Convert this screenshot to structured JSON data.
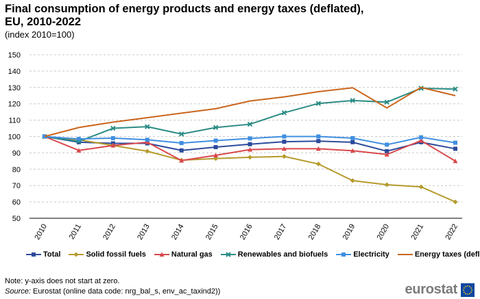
{
  "chart_data": {
    "type": "line",
    "title": "Final consumption of energy products and energy taxes (deflated),",
    "title_line2": "EU, 2010-2022",
    "subtitle": "(index 2010=100)",
    "xlabel": "",
    "ylabel": "",
    "ylim": [
      50,
      150
    ],
    "yticks": [
      "50",
      "60",
      "70",
      "80",
      "90",
      "100",
      "110",
      "120",
      "130",
      "140",
      "150"
    ],
    "grid": "horizontal dashed",
    "legend_position": "bottom",
    "categories": [
      "2010",
      "2011",
      "2012",
      "2013",
      "2014",
      "2015",
      "2016",
      "2017",
      "2018",
      "2019",
      "2020",
      "2021",
      "2022"
    ],
    "series": [
      {
        "name": "Total",
        "color": "#2c4a9b",
        "marker": "square",
        "values": [
          100,
          96.5,
          95.8,
          95.8,
          91.5,
          93.5,
          95.3,
          96.8,
          97.2,
          96.5,
          91,
          96.5,
          92.5
        ]
      },
      {
        "name": "Solid fossil fuels",
        "color": "#b59a2c",
        "marker": "diamond",
        "values": [
          100,
          98,
          94.5,
          91,
          85.5,
          86.5,
          87.3,
          87.8,
          83.2,
          73,
          70.5,
          69.2,
          60
        ]
      },
      {
        "name": "Natural gas",
        "color": "#d9474b",
        "marker": "triangle",
        "values": [
          100,
          91.5,
          94.5,
          96.5,
          85.3,
          88.5,
          92,
          92.5,
          92.5,
          91.3,
          89,
          97.5,
          85
        ]
      },
      {
        "name": "Renewables and biofuels",
        "color": "#2a8c84",
        "marker": "x",
        "values": [
          100,
          97,
          105,
          106,
          101.5,
          105.5,
          107.5,
          114.5,
          120.2,
          122,
          121,
          129.5,
          129
        ]
      },
      {
        "name": "Electricity",
        "color": "#3f8fe0",
        "marker": "square",
        "values": [
          100,
          98.5,
          99,
          98,
          96,
          97.5,
          98.8,
          100,
          100,
          99,
          95,
          99.5,
          96.2
        ]
      },
      {
        "name": "Energy taxes (deflated)",
        "color": "#c9651c",
        "marker": "none",
        "values": [
          100,
          105.5,
          108.8,
          111.5,
          114.3,
          117,
          121.7,
          124.2,
          127.4,
          129.8,
          117.5,
          130,
          125
        ]
      }
    ],
    "note": "Note: y-axis does not start at zero.",
    "source_label": "Source:",
    "source_text": " Eurostat (online data code: nrg_bal_s, env_ac_taxind2))"
  },
  "branding": {
    "logo_text": "eurostat",
    "flag_color": "#0e47a1",
    "star_color": "#ffd617"
  }
}
